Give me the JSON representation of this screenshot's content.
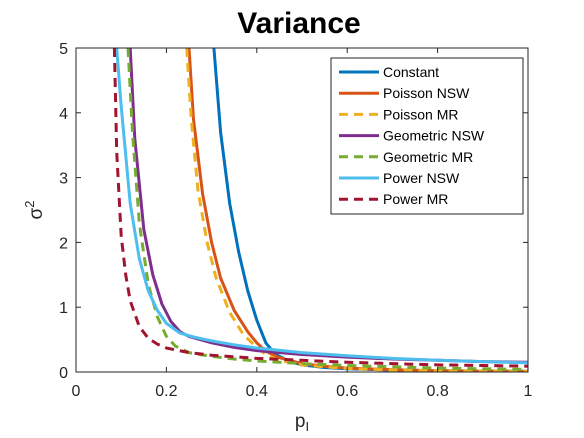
{
  "chart_data": {
    "type": "line",
    "title": "Variance",
    "xlabel": "p",
    "xlabel_sub": "I",
    "ylabel": "σ",
    "ylabel_sup": "2",
    "xlim": [
      0,
      1
    ],
    "ylim": [
      0,
      5
    ],
    "xticks": [
      "0",
      "0.2",
      "0.4",
      "0.6",
      "0.8",
      "1"
    ],
    "yticks": [
      "0",
      "1",
      "2",
      "3",
      "4",
      "5"
    ],
    "grid": false,
    "legend_position": "top-right",
    "series": [
      {
        "name": "Constant",
        "color": "#0072BD",
        "dash": "solid",
        "x": [
          0.305,
          0.32,
          0.34,
          0.36,
          0.38,
          0.4,
          0.42,
          0.44,
          0.47,
          0.5,
          0.55,
          0.6,
          0.7,
          0.8,
          1.0
        ],
        "y": [
          5.0,
          3.7,
          2.6,
          1.85,
          1.25,
          0.8,
          0.45,
          0.28,
          0.17,
          0.11,
          0.07,
          0.05,
          0.03,
          0.02,
          0.01
        ]
      },
      {
        "name": "Poisson NSW",
        "color": "#D95319",
        "dash": "solid",
        "x": [
          0.25,
          0.26,
          0.28,
          0.3,
          0.32,
          0.35,
          0.38,
          0.4,
          0.42,
          0.45,
          0.5,
          0.55,
          0.6,
          0.7,
          0.8,
          1.0
        ],
        "y": [
          5.0,
          3.9,
          2.75,
          2.0,
          1.45,
          0.95,
          0.62,
          0.45,
          0.32,
          0.22,
          0.13,
          0.09,
          0.06,
          0.035,
          0.02,
          0.01
        ]
      },
      {
        "name": "Poisson MR",
        "color": "#EDB120",
        "dash": "dashed",
        "x": [
          0.245,
          0.255,
          0.27,
          0.29,
          0.31,
          0.34,
          0.37,
          0.4,
          0.42,
          0.45,
          0.5,
          0.55,
          0.6,
          0.7,
          0.8,
          1.0
        ],
        "y": [
          5.0,
          3.9,
          2.8,
          2.0,
          1.45,
          0.92,
          0.58,
          0.38,
          0.27,
          0.18,
          0.11,
          0.08,
          0.055,
          0.03,
          0.02,
          0.01
        ]
      },
      {
        "name": "Geometric NSW",
        "color": "#7E2F8E",
        "dash": "solid",
        "x": [
          0.12,
          0.13,
          0.15,
          0.17,
          0.19,
          0.21,
          0.23,
          0.25,
          0.3,
          0.35,
          0.4,
          0.5,
          0.6,
          0.7,
          0.8,
          0.9,
          1.0
        ],
        "y": [
          5.0,
          3.6,
          2.2,
          1.5,
          1.05,
          0.78,
          0.62,
          0.55,
          0.45,
          0.38,
          0.33,
          0.27,
          0.23,
          0.2,
          0.18,
          0.16,
          0.15
        ]
      },
      {
        "name": "Geometric MR",
        "color": "#77AC30",
        "dash": "dashed",
        "x": [
          0.115,
          0.125,
          0.14,
          0.16,
          0.18,
          0.2,
          0.22,
          0.25,
          0.3,
          0.35,
          0.4,
          0.5,
          0.6,
          0.7,
          0.8,
          0.9,
          1.0
        ],
        "y": [
          5.0,
          3.7,
          2.3,
          1.35,
          0.85,
          0.55,
          0.4,
          0.3,
          0.24,
          0.2,
          0.17,
          0.13,
          0.1,
          0.08,
          0.06,
          0.05,
          0.04
        ]
      },
      {
        "name": "Power NSW",
        "color": "#4DBEEE",
        "dash": "solid",
        "x": [
          0.09,
          0.1,
          0.12,
          0.14,
          0.16,
          0.18,
          0.2,
          0.23,
          0.26,
          0.3,
          0.35,
          0.4,
          0.5,
          0.6,
          0.7,
          0.8,
          0.9,
          1.0
        ],
        "y": [
          5.0,
          4.1,
          2.6,
          1.75,
          1.25,
          0.95,
          0.75,
          0.6,
          0.54,
          0.48,
          0.42,
          0.37,
          0.3,
          0.25,
          0.21,
          0.18,
          0.16,
          0.14
        ]
      },
      {
        "name": "Power MR",
        "color": "#A2142F",
        "dash": "dashed",
        "x": [
          0.085,
          0.09,
          0.1,
          0.11,
          0.12,
          0.14,
          0.16,
          0.18,
          0.2,
          0.25,
          0.3,
          0.4,
          0.5,
          0.6,
          0.7,
          0.8,
          0.9,
          1.0
        ],
        "y": [
          5.0,
          3.4,
          2.1,
          1.5,
          1.1,
          0.7,
          0.52,
          0.43,
          0.37,
          0.3,
          0.26,
          0.21,
          0.18,
          0.15,
          0.13,
          0.11,
          0.1,
          0.09
        ]
      }
    ]
  }
}
